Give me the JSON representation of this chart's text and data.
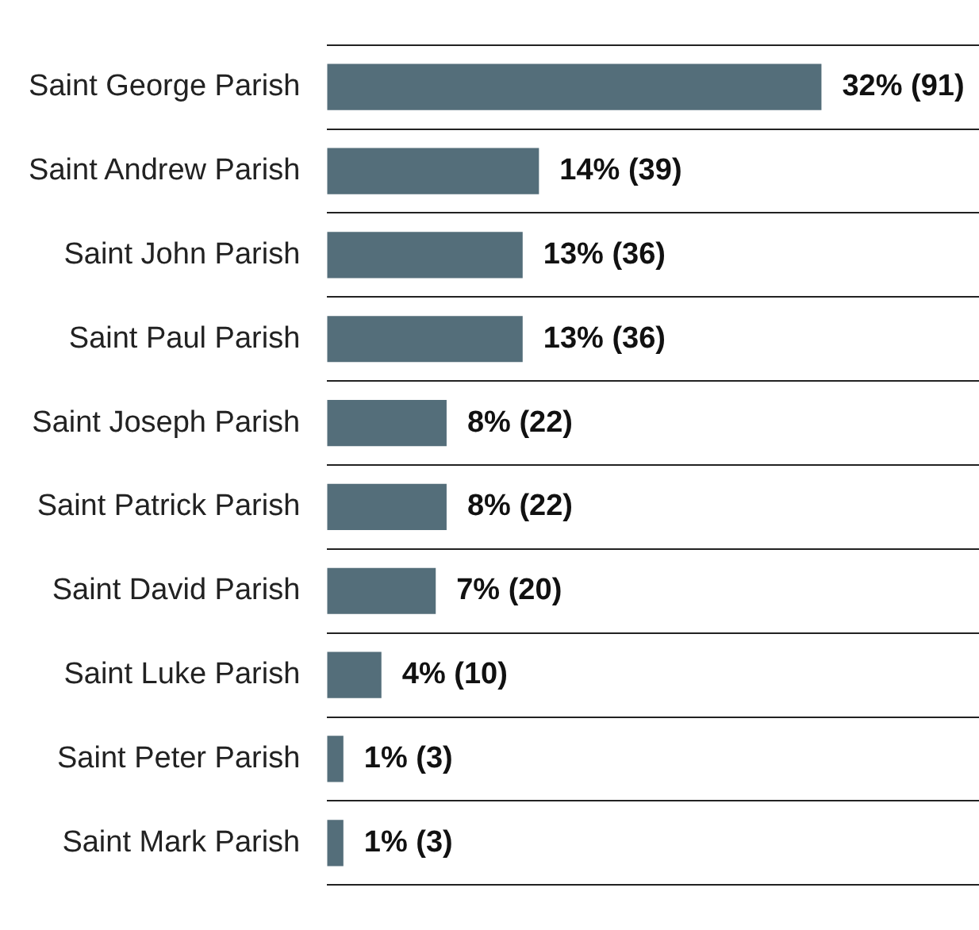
{
  "chart_data": {
    "type": "bar",
    "orientation": "horizontal",
    "categories": [
      "Saint George Parish",
      "Saint Andrew Parish",
      "Saint John Parish",
      "Saint Paul Parish",
      "Saint Joseph Parish",
      "Saint Patrick Parish",
      "Saint David Parish",
      "Saint Luke Parish",
      "Saint Peter Parish",
      "Saint Mark Parish"
    ],
    "values": [
      91,
      39,
      36,
      36,
      22,
      22,
      20,
      10,
      3,
      3
    ],
    "value_labels": [
      "32% (91)",
      "14% (39)",
      "13% (36)",
      "13% (36)",
      "8% (22)",
      "8% (22)",
      "7% (20)",
      "4% (10)",
      "1% (3)",
      "1% (3)"
    ],
    "color": "#546e7a",
    "grid": "y"
  }
}
